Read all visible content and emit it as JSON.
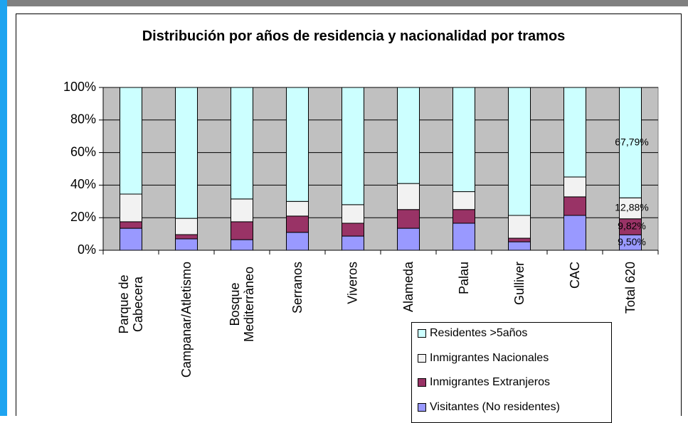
{
  "chart_data": {
    "type": "stacked_bar_100",
    "title": "Distribución por años de residencia y nacionalidad por tramos",
    "categories": [
      "Parque de Cabecera",
      "Campanar/Atletismo",
      "Bosque Mediterràneo",
      "Serranos",
      "Viveros",
      "Alameda",
      "Palau",
      "Gulliver",
      "CAC",
      "Total 620"
    ],
    "series": [
      {
        "name": "Visitantes (No residentes)",
        "color": "#9999ff",
        "values": [
          13.5,
          7,
          6.5,
          11,
          8.7,
          13.5,
          16.6,
          5.2,
          21.4,
          9.5
        ],
        "value_labels": [
          null,
          null,
          null,
          null,
          null,
          null,
          null,
          null,
          null,
          "9,50%"
        ]
      },
      {
        "name": "Inmigrantes Extranjeros",
        "color": "#993366",
        "values": [
          4,
          2.6,
          11,
          10,
          7.9,
          11.5,
          8.4,
          2.2,
          11.4,
          9.82
        ],
        "value_labels": [
          null,
          null,
          null,
          null,
          null,
          null,
          null,
          null,
          null,
          "9,82%"
        ]
      },
      {
        "name": "Inmigrantes Nacionales",
        "color": "#f2f2f2",
        "values": [
          17,
          10,
          14,
          9,
          11.4,
          16,
          11,
          14,
          12.2,
          12.88
        ],
        "value_labels": [
          null,
          null,
          null,
          null,
          null,
          null,
          null,
          null,
          null,
          "12,88%"
        ]
      },
      {
        "name": "Residentes >5años",
        "color": "#ccffff",
        "values": [
          65.5,
          80.4,
          68.5,
          70,
          72,
          59,
          64,
          78.6,
          55,
          67.79
        ],
        "value_labels": [
          null,
          null,
          null,
          null,
          null,
          null,
          null,
          null,
          null,
          "67,79%"
        ]
      }
    ],
    "ylim": [
      0,
      100
    ],
    "yticks": [
      {
        "value": 0,
        "label": "0%"
      },
      {
        "value": 20,
        "label": "20%"
      },
      {
        "value": 40,
        "label": "40%"
      },
      {
        "value": 60,
        "label": "60%"
      },
      {
        "value": 80,
        "label": "80%"
      },
      {
        "value": 100,
        "label": "100%"
      }
    ],
    "grid": true
  }
}
